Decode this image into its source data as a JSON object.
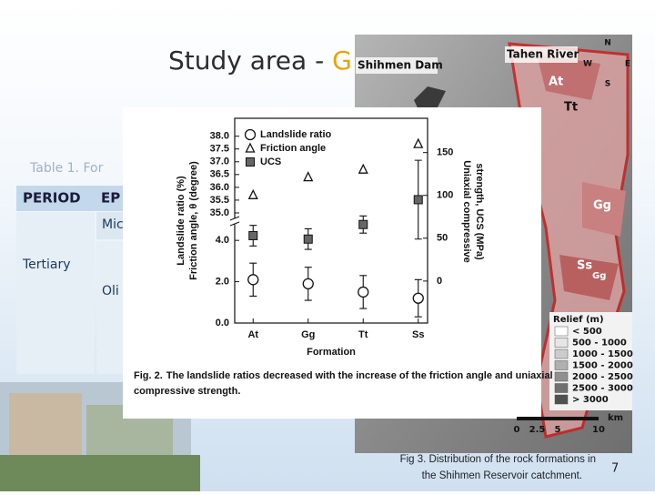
{
  "slide": {
    "title_prefix": "Study area - ",
    "title_highlight": "G",
    "page_number": "7"
  },
  "table": {
    "caption": "Table 1. For",
    "header": [
      "PERIOD",
      "EP"
    ],
    "period": "Tertiary",
    "epochs": [
      "Mic",
      "Oli"
    ]
  },
  "map": {
    "place_labels": [
      "Shihmen Dam",
      "Tahen River"
    ],
    "compass": [
      "N",
      "W",
      "E",
      "S"
    ],
    "formations": [
      "At",
      "Tt",
      "Gg",
      "Ss",
      "Gg"
    ],
    "relief_title": "Relief (m)",
    "relief_classes": [
      "< 500",
      "500 - 1000",
      "1000 - 1500",
      "1500 - 2000",
      "2000 - 2500",
      "2500 - 3000",
      "> 3000"
    ],
    "scale_ticks": [
      0,
      2.5,
      5,
      10
    ],
    "scale_unit": "km",
    "caption": [
      "Fig 3. Distribution of the rock formations in",
      "the Shihmen Reservoir catchment."
    ]
  },
  "chart_data": {
    "type": "scatter",
    "caption_label": "Fig. 2.",
    "caption": [
      "The landslide ratios decreased with the increase of the friction angle and uniaxial",
      "compressive strength."
    ],
    "x_label": "Formation",
    "y_label": [
      "Landslide ratio (%)",
      "Friction angle, θ (degree)"
    ],
    "y2_label": [
      "Uniaxial compressive",
      "strength, UCS (MPa)"
    ],
    "categories": [
      "At",
      "Gg",
      "Tt",
      "Ss"
    ],
    "ylim": [
      0,
      4.8
    ],
    "yticks": [
      {
        "value": 0,
        "label": "0.0"
      },
      {
        "value": 2,
        "label": "2.0"
      },
      {
        "value": 4,
        "label": "4.0"
      }
    ],
    "y_upper_lim": [
      34.75,
      38.7
    ],
    "y_upper_ticks": [
      {
        "value": 35,
        "label": "35.0"
      },
      {
        "value": 35.5,
        "label": "35.5"
      },
      {
        "value": 36,
        "label": "36.0"
      },
      {
        "value": 36.5,
        "label": "36.5"
      },
      {
        "value": 37,
        "label": "37.0"
      },
      {
        "value": 37.5,
        "label": "37.5"
      },
      {
        "value": 38,
        "label": "38.0"
      }
    ],
    "y2lim": [
      -49,
      190
    ],
    "y2ticks": [
      0,
      50,
      100,
      150
    ],
    "series": [
      {
        "name": "Landslide ratio",
        "marker": "circle",
        "color": "#ffffff",
        "axis": "y",
        "values": [
          2.1,
          1.9,
          1.5,
          1.2
        ],
        "errors": [
          0.8,
          0.8,
          0.8,
          0.9
        ]
      },
      {
        "name": "Friction angle",
        "marker": "triangle",
        "color": "#ffffff",
        "axis": "y_upper",
        "values": [
          35.7,
          36.4,
          36.7,
          37.7
        ]
      },
      {
        "name": "UCS",
        "marker": "square",
        "color": "#666666",
        "axis": "y2",
        "values": [
          53,
          49,
          66,
          95
        ],
        "errors": [
          12,
          12,
          10,
          46
        ]
      }
    ]
  }
}
